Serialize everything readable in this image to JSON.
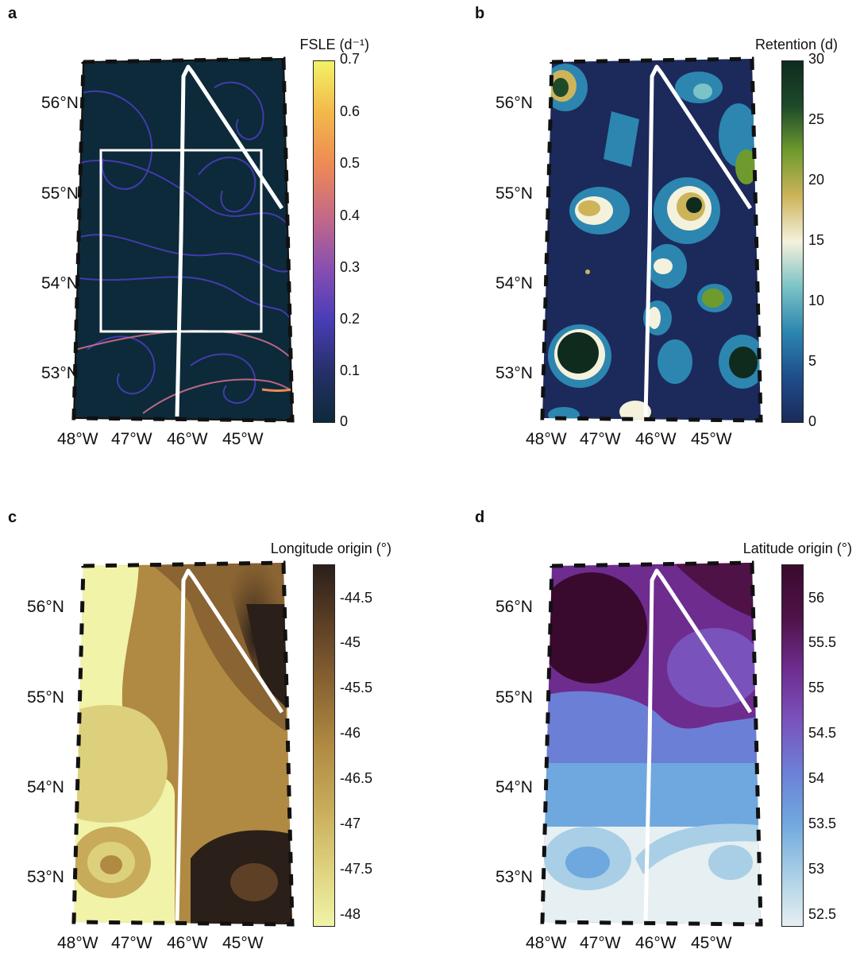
{
  "panels": [
    {
      "id": "a",
      "colorbar_title": "FSLE (d⁻¹)",
      "colorbar_ticks": [
        "0.7",
        "0.6",
        "0.5",
        "0.4",
        "0.3",
        "0.2",
        "0.1",
        "0"
      ],
      "colors": [
        "#0c2a3a",
        "#27306a",
        "#4a3db8",
        "#8a4fb0",
        "#c46a86",
        "#ee8a55",
        "#f2b84a",
        "#f2f266"
      ]
    },
    {
      "id": "b",
      "colorbar_title": "Retention (d)",
      "colorbar_ticks": [
        "30",
        "25",
        "20",
        "15",
        "10",
        "5",
        "0"
      ],
      "colors": [
        "#1b2a5a",
        "#1f4d8c",
        "#2c86b0",
        "#7bc3c6",
        "#f4f1dc",
        "#cdb45a",
        "#6f9b2e",
        "#1e4a2a",
        "#0f2b1d"
      ]
    },
    {
      "id": "c",
      "colorbar_title": "Longitude origin (°)",
      "colorbar_ticks": [
        "-44.5",
        "-45",
        "-45.5",
        "-46",
        "-46.5",
        "-47",
        "-47.5",
        "-48"
      ],
      "colors": [
        "#f1f3a8",
        "#ddd07c",
        "#c7aa5a",
        "#b08a42",
        "#8a6432",
        "#5e4026",
        "#2a1f19"
      ]
    },
    {
      "id": "d",
      "colorbar_title": "Latitude origin (°)",
      "colorbar_ticks": [
        "56",
        "55.5",
        "55",
        "54.5",
        "54",
        "53.5",
        "53",
        "52.5"
      ],
      "colors": [
        "#e6eff2",
        "#a9cfe6",
        "#6fa8de",
        "#6c7fd6",
        "#7a52bb",
        "#6e2c8f",
        "#4e1246",
        "#3a0a2e"
      ]
    }
  ],
  "lat_labels": [
    "56°N",
    "55°N",
    "54°N",
    "53°N"
  ],
  "lon_labels": [
    "48°W",
    "47°W",
    "46°W",
    "45°W"
  ],
  "chart_data": [
    {
      "type": "heatmap",
      "panel": "a",
      "title": "",
      "colorbar_label": "FSLE (d⁻¹)",
      "colorbar_range": [
        0,
        0.7
      ],
      "colorbar_ticks": [
        0,
        0.1,
        0.2,
        0.3,
        0.4,
        0.5,
        0.6,
        0.7
      ],
      "lat_ticks": [
        53,
        54,
        55,
        56
      ],
      "lon_ticks": [
        -48,
        -47,
        -46,
        -45
      ]
    },
    {
      "type": "heatmap",
      "panel": "b",
      "title": "",
      "colorbar_label": "Retention (d)",
      "colorbar_range": [
        0,
        30
      ],
      "colorbar_ticks": [
        0,
        5,
        10,
        15,
        20,
        25,
        30
      ],
      "lat_ticks": [
        53,
        54,
        55,
        56
      ],
      "lon_ticks": [
        -48,
        -47,
        -46,
        -45
      ]
    },
    {
      "type": "heatmap",
      "panel": "c",
      "title": "",
      "colorbar_label": "Longitude origin (°)",
      "colorbar_range": [
        -48.2,
        -44.2
      ],
      "colorbar_ticks": [
        -48,
        -47.5,
        -47,
        -46.5,
        -46,
        -45.5,
        -45,
        -44.5
      ],
      "lat_ticks": [
        53,
        54,
        55,
        56
      ],
      "lon_ticks": [
        -48,
        -47,
        -46,
        -45
      ]
    },
    {
      "type": "heatmap",
      "panel": "d",
      "title": "",
      "colorbar_label": "Latitude origin (°)",
      "colorbar_range": [
        52.4,
        56.4
      ],
      "colorbar_ticks": [
        52.5,
        53,
        53.5,
        54,
        54.5,
        55,
        55.5,
        56
      ],
      "lat_ticks": [
        53,
        54,
        55,
        56
      ],
      "lon_ticks": [
        -48,
        -47,
        -46,
        -45
      ]
    }
  ]
}
